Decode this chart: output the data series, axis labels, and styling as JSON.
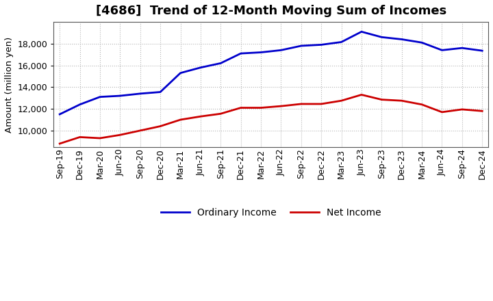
{
  "title": "[4686]  Trend of 12-Month Moving Sum of Incomes",
  "ylabel": "Amount (million yen)",
  "background_color": "#ffffff",
  "grid_color": "#aaaaaa",
  "x_labels": [
    "Sep-19",
    "Dec-19",
    "Mar-20",
    "Jun-20",
    "Sep-20",
    "Dec-20",
    "Mar-21",
    "Jun-21",
    "Sep-21",
    "Dec-21",
    "Mar-22",
    "Jun-22",
    "Sep-22",
    "Dec-22",
    "Mar-23",
    "Jun-23",
    "Sep-23",
    "Dec-23",
    "Mar-24",
    "Jun-24",
    "Sep-24",
    "Dec-24"
  ],
  "ordinary_income": [
    11500,
    12400,
    13100,
    13200,
    13400,
    13550,
    15300,
    15800,
    16200,
    17100,
    17200,
    17400,
    17800,
    17900,
    18150,
    19100,
    18600,
    18400,
    18100,
    17400,
    17600,
    17350
  ],
  "net_income": [
    8800,
    9400,
    9300,
    9600,
    10000,
    10400,
    11000,
    11300,
    11550,
    12100,
    12100,
    12250,
    12450,
    12450,
    12750,
    13300,
    12850,
    12750,
    12400,
    11700,
    11950,
    11800
  ],
  "ordinary_color": "#0000cc",
  "net_color": "#cc0000",
  "ylim_min": 8500,
  "ylim_max": 20000,
  "yticks": [
    10000,
    12000,
    14000,
    16000,
    18000
  ],
  "line_width": 2.0,
  "title_fontsize": 13,
  "tick_fontsize": 9,
  "legend_fontsize": 10
}
